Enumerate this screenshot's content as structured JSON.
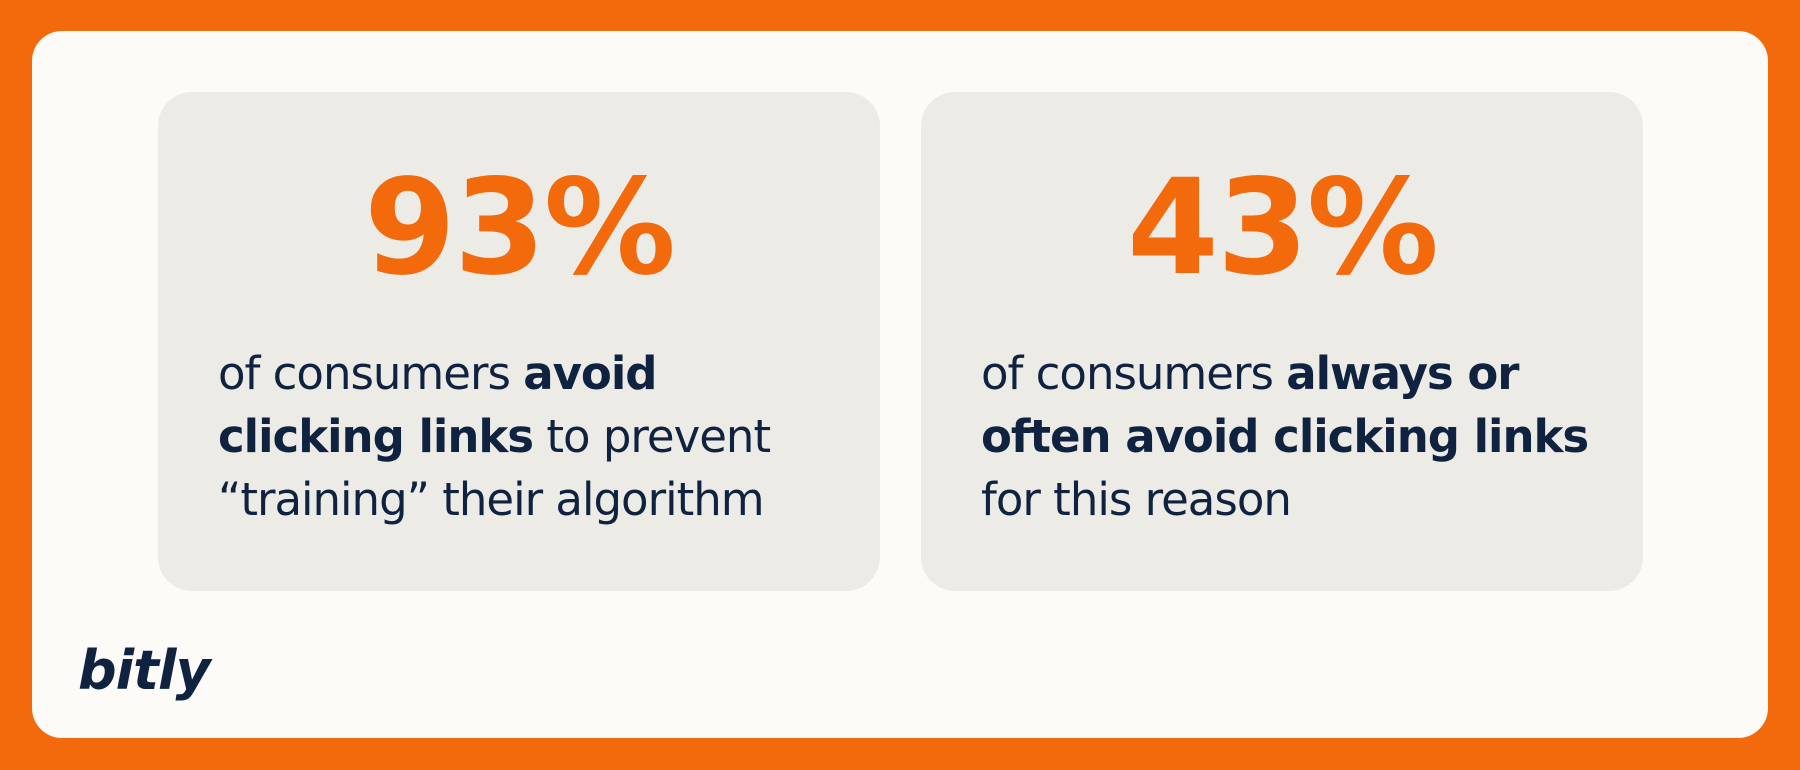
{
  "cards": [
    {
      "stat": "93%",
      "lines": [
        [
          {
            "text": "of consumers ",
            "bold": false
          },
          {
            "text": "avoid",
            "bold": true
          }
        ],
        [
          {
            "text": "clicking links",
            "bold": true
          },
          {
            "text": " to prevent",
            "bold": false
          }
        ],
        [
          {
            "text": "“training” their algorithm",
            "bold": false
          }
        ]
      ]
    },
    {
      "stat": "43%",
      "lines": [
        [
          {
            "text": "of consumers ",
            "bold": false
          },
          {
            "text": "always or",
            "bold": true
          }
        ],
        [
          {
            "text": "often avoid clicking links",
            "bold": true
          }
        ],
        [
          {
            "text": "for this reason",
            "bold": false
          }
        ]
      ]
    }
  ],
  "logo": "bitly"
}
